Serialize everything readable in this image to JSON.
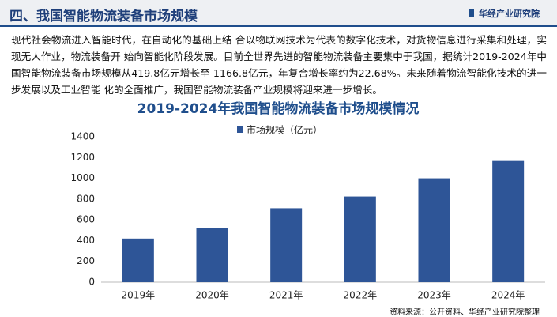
{
  "header": {
    "title": "四、我国智能物流装备市场规模",
    "logo": "华经产业研究院"
  },
  "paragraph": "现代社会物流进入智能时代，在自动化的基础上结  合以物联网技术为代表的数字化技术，对货物信息进行采集和处理，实现无人作业，物流装备开  始向智能化阶段发展。目前全世界先进的智能物流装备主要集中于我国，据统计2019-2024年中国智能物流装备市场规模从419.8亿元增长至  1166.8亿元，年复合增长率约为22.68%。未来随着物流智能化技术的进一步发展以及工业智能 化的全面推广，我国智能物流装备产业规模将迎来进一步增长。",
  "source": "资料来源：公开资料、华经产业研究院整理",
  "chart_data": {
    "type": "bar",
    "title": "2019-2024年我国智能物流装备市场规模情况",
    "categories": [
      "2019年",
      "2020年",
      "2021年",
      "2022年",
      "2023年",
      "2024年"
    ],
    "series": [
      {
        "name": "市场规模（亿元）",
        "color": "#2e5597",
        "values": [
          419.8,
          520,
          712,
          825,
          1000,
          1166.8
        ]
      }
    ],
    "ylim": [
      0,
      1400
    ],
    "yticks": [
      0,
      200,
      400,
      600,
      800,
      1000,
      1200,
      1400
    ],
    "grid": false,
    "legend": "top"
  }
}
